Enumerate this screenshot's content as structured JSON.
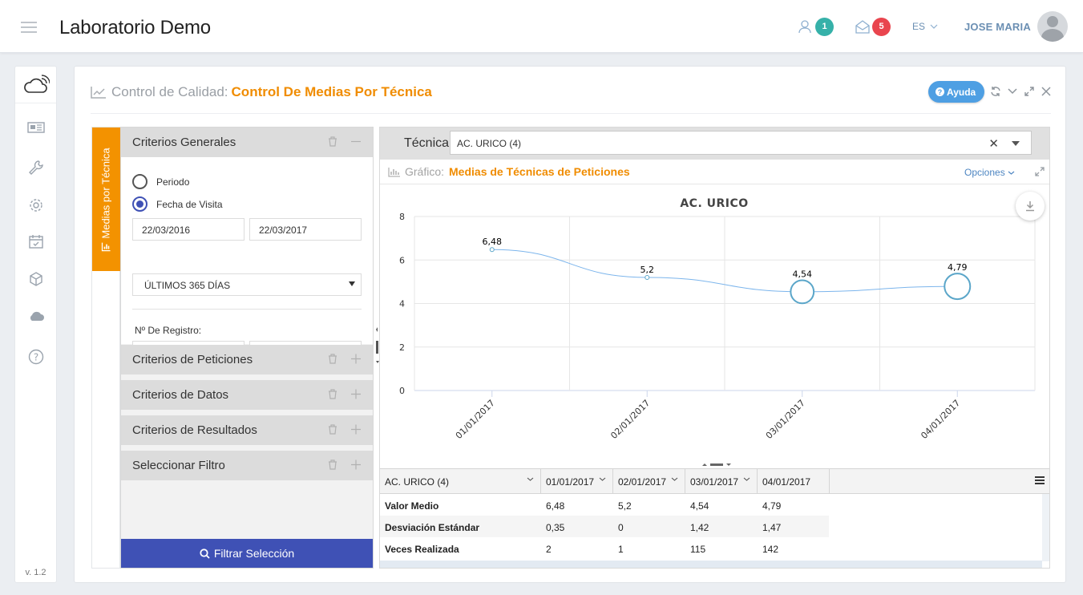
{
  "header": {
    "app_title": "Laboratorio Demo",
    "notif_users_count": "1",
    "notif_mail_count": "5",
    "language": "ES",
    "user_name": "JOSE MARIA"
  },
  "sidebar": {
    "icons": [
      "cloud-wifi-icon",
      "newspaper-icon",
      "wrench-icon",
      "gear-icon",
      "calendar-check-icon",
      "cube-icon",
      "cloud-icon",
      "help-icon"
    ],
    "version": "v. 1.2"
  },
  "panel": {
    "title_prefix": "Control de Calidad:",
    "title_main": "Control De Medias Por Técnica",
    "help_label": "Ayuda"
  },
  "vertical_tab": {
    "label": "Medias por Técnica"
  },
  "criteria": {
    "general_title": "Criterios Generales",
    "radio_period": "Periodo",
    "radio_visit_date": "Fecha de Visita",
    "date_from": "22/03/2016",
    "date_to": "22/03/2017",
    "range_select": "ÚLTIMOS 365 DÍAS",
    "registry_label": "Nº De Registro:",
    "registry_from": "",
    "registry_to": "",
    "sections": [
      "Criterios de Peticiones",
      "Criterios de Datos",
      "Criterios de Resultados",
      "Seleccionar Filtro"
    ],
    "filter_button": "Filtrar Selección"
  },
  "technique": {
    "label": "Técnica:",
    "value": "AC. URICO (4)"
  },
  "chart_panel": {
    "prefix": "Gráfico:",
    "title": "Medias de Técnicas de Peticiones",
    "options_label": "Opciones"
  },
  "chart_data": {
    "type": "line",
    "title": "AC. URICO",
    "xlabel": "",
    "ylabel": "",
    "categories": [
      "01/01/2017",
      "02/01/2017",
      "03/01/2017",
      "04/01/2017"
    ],
    "series": [
      {
        "values": [
          6.48,
          5.2,
          4.54,
          4.79
        ],
        "labels": [
          "6,48",
          "5,2",
          "4,54",
          "4,79"
        ],
        "bubble": [
          2,
          1,
          115,
          142
        ]
      }
    ],
    "ylim": [
      0,
      8
    ],
    "yticks": [
      "0",
      "2",
      "4",
      "6",
      "8"
    ],
    "grid": true,
    "line_color": "#7cb5ec"
  },
  "table": {
    "columns": [
      "AC. URICO (4)",
      "01/01/2017",
      "02/01/2017",
      "03/01/2017",
      "04/01/2017"
    ],
    "rows": [
      {
        "label": "Valor Medio",
        "values": [
          "6,48",
          "5,2",
          "4,54",
          "4,79"
        ]
      },
      {
        "label": "Desviación Estándar",
        "values": [
          "0,35",
          "0",
          "1,42",
          "1,47"
        ]
      },
      {
        "label": "Veces Realizada",
        "values": [
          "2",
          "1",
          "115",
          "142"
        ]
      }
    ]
  }
}
